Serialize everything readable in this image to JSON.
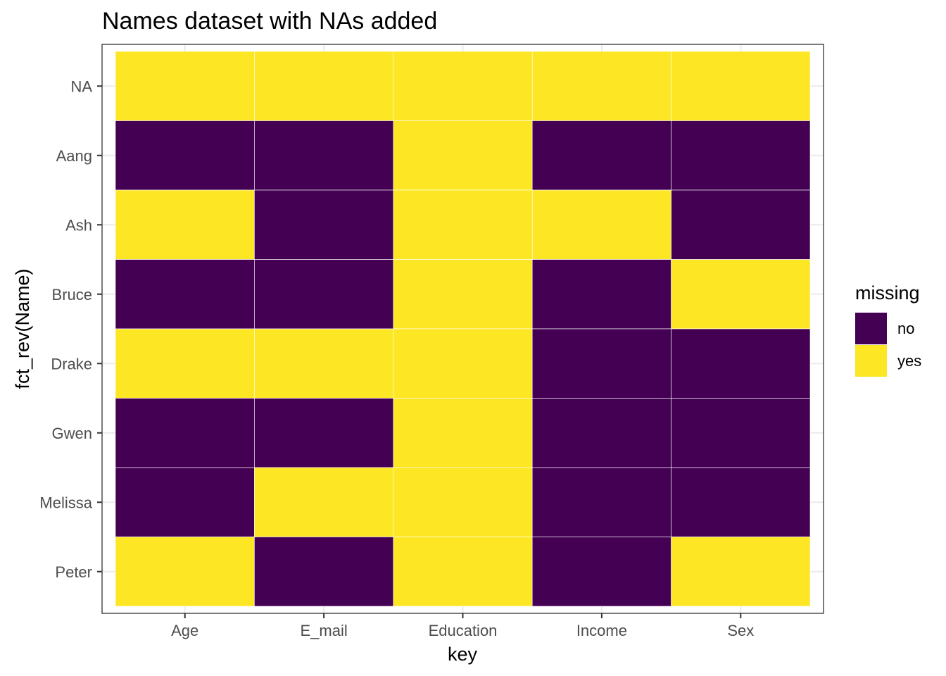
{
  "chart_data": {
    "type": "heatmap",
    "title": "Names dataset with NAs added",
    "xlabel": "key",
    "ylabel": "fct_rev(Name)",
    "x_categories": [
      "Age",
      "E_mail",
      "Education",
      "Income",
      "Sex"
    ],
    "y_categories": [
      "NA",
      "Aang",
      "Ash",
      "Bruce",
      "Drake",
      "Gwen",
      "Melissa",
      "Peter"
    ],
    "fill_legend_title": "missing",
    "levels": [
      "no",
      "yes"
    ],
    "colors": {
      "no": "#440154",
      "yes": "#FDE725"
    },
    "cells": [
      [
        "yes",
        "yes",
        "yes",
        "yes",
        "yes"
      ],
      [
        "no",
        "no",
        "yes",
        "no",
        "no"
      ],
      [
        "yes",
        "no",
        "yes",
        "yes",
        "no"
      ],
      [
        "no",
        "no",
        "yes",
        "no",
        "yes"
      ],
      [
        "yes",
        "yes",
        "yes",
        "no",
        "no"
      ],
      [
        "no",
        "no",
        "yes",
        "no",
        "no"
      ],
      [
        "no",
        "yes",
        "yes",
        "no",
        "no"
      ],
      [
        "yes",
        "no",
        "yes",
        "no",
        "yes"
      ]
    ],
    "grid": true,
    "legend_position": "right"
  }
}
